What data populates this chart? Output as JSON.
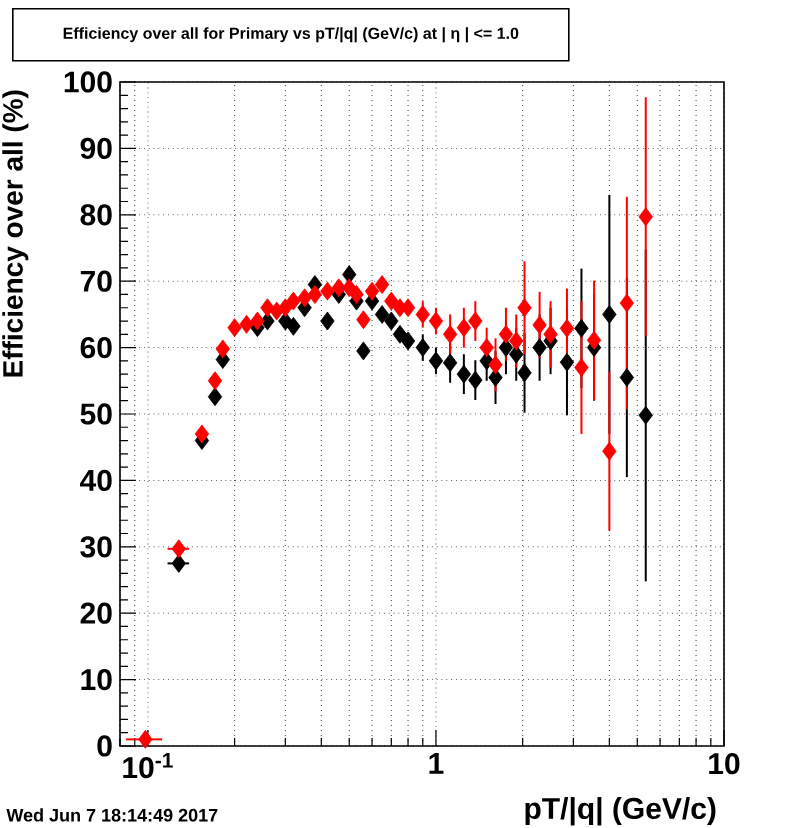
{
  "chart_data": {
    "type": "scatter",
    "title": "Efficiency over all for Primary vs pT/|q| (GeV/c) at | η | <= 1.0",
    "xlabel": "pT/|q| (GeV/c)",
    "ylabel": "Efficiency over all (%)",
    "annotations": [
      "Wed Jun  7 18:14:49 2017"
    ],
    "log": "x",
    "grid": true,
    "marker": "diamond",
    "xlim": [
      0.08,
      10
    ],
    "ylim": [
      0,
      100
    ],
    "xticks": [
      {
        "value": 0.1,
        "label": "10$^{-1}$"
      },
      1,
      10
    ],
    "yticks": [
      0,
      10,
      20,
      30,
      40,
      50,
      60,
      70,
      80,
      90,
      100
    ],
    "x": [
      0.098,
      0.128,
      0.154,
      0.171,
      0.182,
      0.2,
      0.22,
      0.24,
      0.26,
      0.28,
      0.3,
      0.32,
      0.35,
      0.38,
      0.42,
      0.46,
      0.5,
      0.53,
      0.56,
      0.6,
      0.65,
      0.7,
      0.75,
      0.8,
      0.9,
      1.0,
      1.12,
      1.25,
      1.37,
      1.5,
      1.61,
      1.75,
      1.9,
      2.03,
      2.29,
      2.5,
      2.85,
      3.2,
      3.54,
      4.0,
      4.6,
      5.35
    ],
    "series": [
      {
        "color": "#000000",
        "values": [
          null,
          27.5,
          46,
          52.6,
          58.2,
          null,
          null,
          63,
          64,
          null,
          64,
          63.2,
          66,
          69.5,
          64,
          68,
          71,
          67,
          59.5,
          67,
          65,
          64,
          62,
          61,
          60,
          58,
          57.7,
          56,
          55.1,
          58,
          55.5,
          60,
          59,
          56.2,
          60,
          61,
          57.8,
          62.9,
          60,
          65,
          55.5,
          49.8
        ],
        "errors": [
          null,
          null,
          null,
          null,
          null,
          null,
          null,
          null,
          null,
          null,
          null,
          null,
          null,
          null,
          null,
          null,
          null,
          null,
          null,
          null,
          null,
          null,
          null,
          null,
          2,
          2,
          3,
          3,
          3,
          3,
          4,
          4,
          4,
          6,
          5,
          5,
          8,
          9,
          8,
          18,
          15,
          25
        ],
        "xerrors": [
          null,
          0.011,
          null,
          null,
          null,
          null,
          null,
          null,
          null,
          null,
          null,
          null,
          null,
          null,
          null,
          null,
          null,
          null,
          null,
          null,
          null,
          null,
          null,
          null,
          null,
          null,
          null,
          null,
          null,
          null,
          null,
          null,
          null,
          null,
          null,
          null,
          null,
          null,
          null,
          null,
          null,
          null
        ]
      },
      {
        "color": "#ff0000",
        "values": [
          1,
          29.7,
          47,
          55,
          59.8,
          63,
          63.5,
          64,
          66,
          65.5,
          66,
          67,
          67.5,
          68,
          68.5,
          69,
          69,
          68,
          64.2,
          68.5,
          69.5,
          67,
          66,
          66,
          65,
          64,
          62,
          63,
          64,
          60,
          57.4,
          62,
          61,
          66,
          63.4,
          62,
          62.9,
          57,
          61.1,
          44.4,
          66.7,
          79.7
        ],
        "errors": [
          null,
          null,
          null,
          null,
          null,
          null,
          null,
          null,
          null,
          null,
          null,
          null,
          null,
          null,
          null,
          null,
          null,
          null,
          null,
          null,
          null,
          null,
          null,
          null,
          2,
          2,
          3,
          3,
          3,
          3,
          4,
          4,
          4,
          7,
          5,
          5,
          6,
          10,
          9,
          12,
          16,
          18
        ],
        "xerrors": [
          0.014,
          0.011,
          null,
          null,
          null,
          null,
          null,
          null,
          null,
          null,
          null,
          null,
          null,
          null,
          null,
          null,
          null,
          null,
          null,
          null,
          null,
          null,
          null,
          null,
          null,
          null,
          null,
          null,
          null,
          null,
          null,
          null,
          null,
          null,
          null,
          null,
          null,
          null,
          null,
          null,
          null,
          null
        ]
      }
    ]
  }
}
